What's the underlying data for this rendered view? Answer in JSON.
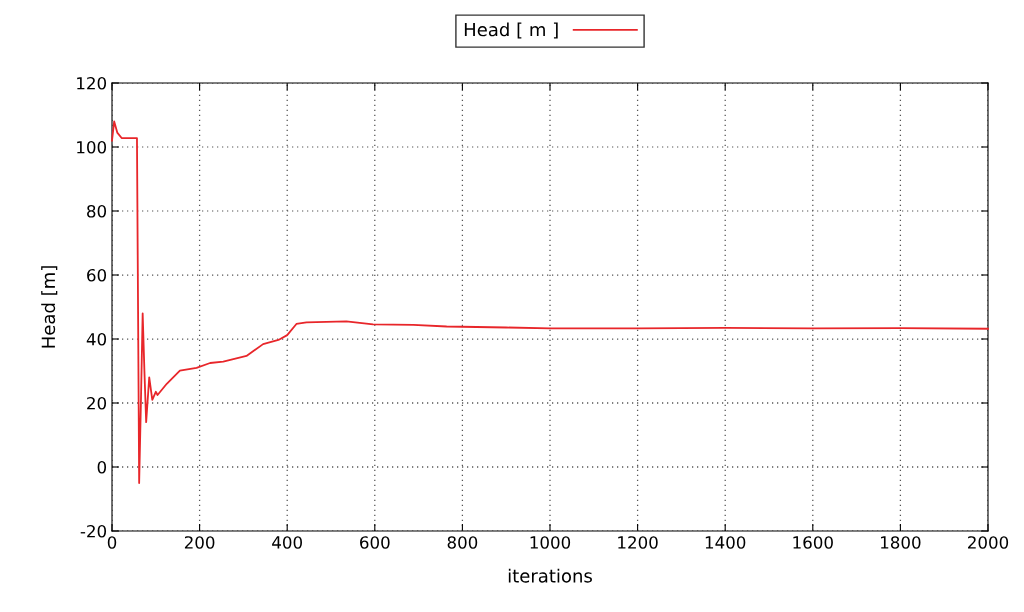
{
  "chart_data": {
    "type": "line",
    "xlabel": "iterations",
    "ylabel": "Head [m]",
    "xlim": [
      0,
      2000
    ],
    "xticks": [
      0,
      200,
      400,
      600,
      800,
      1000,
      1200,
      1400,
      1600,
      1800,
      2000
    ],
    "ylim": [
      -20,
      120
    ],
    "yticks": [
      -20,
      0,
      20,
      40,
      60,
      80,
      100,
      120
    ],
    "grid": true,
    "legend": "top",
    "line_style": "solid",
    "marker": "none",
    "series": [
      {
        "name": "Head [ m ]",
        "color": "#e8262a",
        "x": [
          0,
          5,
          12,
          22,
          40,
          57,
          62,
          66,
          70,
          74,
          78,
          85,
          92,
          100,
          104,
          125,
          155,
          193,
          224,
          254,
          307,
          345,
          380,
          400,
          421,
          444,
          535,
          596,
          688,
          764,
          900,
          1000,
          1200,
          1400,
          1600,
          1800,
          2000
        ],
        "values": [
          102,
          108,
          104.5,
          102.8,
          102.8,
          102.8,
          -5,
          20,
          48,
          30,
          14,
          28,
          21,
          23.5,
          22.5,
          26,
          30.1,
          31,
          32.5,
          32.9,
          34.7,
          38.4,
          39.7,
          41.2,
          44.7,
          45.2,
          45.5,
          44.6,
          44.4,
          43.9,
          43.6,
          43.3,
          43.3,
          43.5,
          43.3,
          43.4,
          43.2
        ]
      }
    ]
  }
}
